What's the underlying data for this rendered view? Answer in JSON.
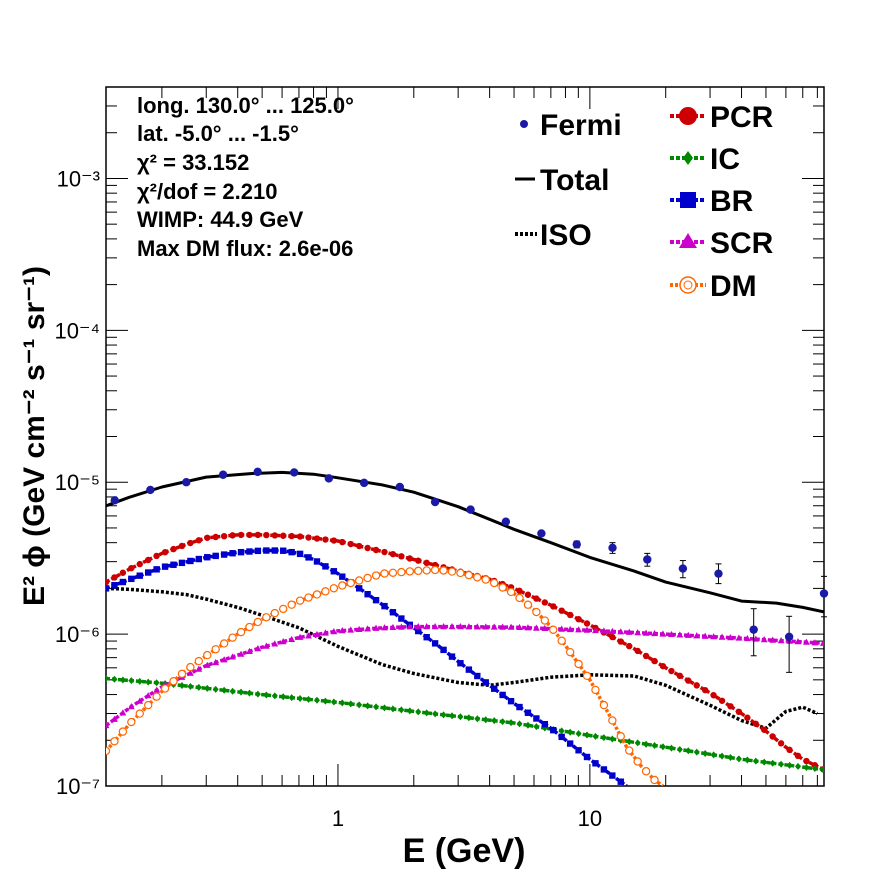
{
  "chart_data": {
    "type": "scatter",
    "xlabel": "E (GeV)",
    "ylabel": "E² ϕ (GeV cm⁻² s⁻¹ sr⁻¹)",
    "xscale": "log",
    "yscale": "log",
    "xlim": [
      0.12,
      85
    ],
    "ylim": [
      1e-07,
      0.004
    ],
    "x_tick_labels": [
      "1",
      "10"
    ],
    "y_tick_labels": [
      "10⁻³",
      "10⁻⁴",
      "10⁻⁵",
      "10⁻⁶",
      "10⁻⁷"
    ],
    "grid": false,
    "annotations": [
      "long. 130.0° ... 125.0°",
      "lat. -5.0° ... -1.5°",
      "χ² = 33.152",
      "χ²/dof = 2.210",
      "WIMP: 44.9 GeV",
      "Max DM flux: 2.6e-06"
    ],
    "legend_left": [
      {
        "name": "Fermi",
        "style": "points",
        "color": "#1a1aa6"
      },
      {
        "name": "Total",
        "style": "solid",
        "color": "#000000"
      },
      {
        "name": "ISO",
        "style": "dotted",
        "color": "#000000"
      }
    ],
    "legend_right": [
      {
        "name": "PCR",
        "style": "circles",
        "color": "#cc0000"
      },
      {
        "name": "IC",
        "style": "diamonds",
        "color": "#008800"
      },
      {
        "name": "BR",
        "style": "squares",
        "color": "#0000cc"
      },
      {
        "name": "SCR",
        "style": "triangles",
        "color": "#cc00cc"
      },
      {
        "name": "DM",
        "style": "open-circles",
        "color": "#ff6600"
      }
    ],
    "fermi": {
      "x": [
        0.13,
        0.18,
        0.25,
        0.35,
        0.48,
        0.67,
        0.92,
        1.27,
        1.76,
        2.43,
        3.36,
        4.64,
        6.42,
        8.87,
        12.3,
        16.9,
        23.4,
        32.4,
        44.7,
        61.8,
        85.0
      ],
      "y": [
        7.6e-06,
        8.9e-06,
        1e-05,
        1.12e-05,
        1.17e-05,
        1.16e-05,
        1.06e-05,
        9.9e-06,
        9.3e-06,
        7.4e-06,
        6.6e-06,
        5.5e-06,
        4.6e-06,
        3.9e-06,
        3.7e-06,
        3.1e-06,
        2.7e-06,
        2.5e-06,
        1.07e-06,
        9.6e-07,
        1.85e-06
      ],
      "err_lo": [
        0,
        0,
        0,
        0,
        0,
        0,
        0,
        0,
        0,
        0,
        0,
        0,
        0,
        2e-07,
        3e-07,
        3e-07,
        3.5e-07,
        3.5e-07,
        3.5e-07,
        4e-07,
        5.5e-07
      ],
      "err_hi": [
        0,
        0,
        0,
        0,
        0,
        0,
        0,
        0,
        0,
        0,
        0,
        0,
        0,
        2e-07,
        3e-07,
        3e-07,
        3.5e-07,
        4e-07,
        4e-07,
        3.5e-07,
        5.5e-07
      ]
    },
    "series": [
      {
        "name": "Total",
        "color": "#000000",
        "x": [
          0.12,
          0.15,
          0.2,
          0.3,
          0.45,
          0.6,
          0.8,
          1.0,
          1.5,
          2.0,
          3.0,
          4.0,
          5.0,
          7.0,
          10,
          15,
          20,
          30,
          40,
          55,
          70,
          85
        ],
        "y": [
          7e-06,
          8e-06,
          9.3e-06,
          1.08e-05,
          1.14e-05,
          1.16e-05,
          1.13e-05,
          1.07e-05,
          9.6e-06,
          8.6e-06,
          6.9e-06,
          5.7e-06,
          4.9e-06,
          4e-06,
          3.2e-06,
          2.6e-06,
          2.2e-06,
          1.87e-06,
          1.65e-06,
          1.6e-06,
          1.5e-06,
          1.4e-06
        ]
      },
      {
        "name": "ISO",
        "color": "#000000",
        "x": [
          0.12,
          0.15,
          0.2,
          0.25,
          0.3,
          0.4,
          0.5,
          0.7,
          1.0,
          1.5,
          2.0,
          3.0,
          4.0,
          5.0,
          7.0,
          10,
          15,
          20,
          30,
          40,
          50,
          60,
          70,
          80
        ],
        "y": [
          2e-06,
          1.97e-06,
          1.9e-06,
          1.82e-06,
          1.7e-06,
          1.5e-06,
          1.33e-06,
          1.1e-06,
          8.3e-07,
          6.3e-07,
          5.5e-07,
          4.8e-07,
          4.6e-07,
          4.8e-07,
          5.2e-07,
          5.4e-07,
          5.3e-07,
          4.6e-07,
          3.4e-07,
          2.7e-07,
          2.4e-07,
          3.1e-07,
          3.3e-07,
          3e-07
        ]
      },
      {
        "name": "PCR",
        "color": "#cc0000",
        "x": [
          0.12,
          0.15,
          0.2,
          0.25,
          0.3,
          0.4,
          0.5,
          0.7,
          1.0,
          1.5,
          2.0,
          3.0,
          4.0,
          5.0,
          7.0,
          10,
          15,
          20,
          30,
          40,
          50,
          60,
          70,
          85
        ],
        "y": [
          2.2e-06,
          2.7e-06,
          3.4e-06,
          3.9e-06,
          4.3e-06,
          4.5e-06,
          4.5e-06,
          4.4e-06,
          4.1e-06,
          3.5e-06,
          3.1e-06,
          2.6e-06,
          2.3e-06,
          2e-06,
          1.55e-06,
          1.15e-06,
          8e-07,
          6e-07,
          4.1e-07,
          3e-07,
          2.3e-07,
          1.8e-07,
          1.5e-07,
          1.28e-07
        ]
      },
      {
        "name": "IC",
        "color": "#008800",
        "x": [
          0.12,
          0.2,
          0.3,
          0.5,
          1.0,
          2.0,
          5.0,
          10,
          20,
          40,
          85
        ],
        "y": [
          5.1e-07,
          4.75e-07,
          4.4e-07,
          4e-07,
          3.55e-07,
          3.1e-07,
          2.6e-07,
          2.15e-07,
          1.8e-07,
          1.5e-07,
          1.28e-07
        ]
      },
      {
        "name": "BR",
        "color": "#0000cc",
        "x": [
          0.12,
          0.15,
          0.2,
          0.3,
          0.4,
          0.5,
          0.6,
          0.7,
          0.8,
          1.0,
          1.3,
          1.6,
          2.0,
          2.5,
          3.0,
          4.0,
          5.0,
          7.0,
          10,
          14
        ],
        "y": [
          2e-06,
          2.3e-06,
          2.75e-06,
          3.2e-06,
          3.45e-06,
          3.55e-06,
          3.55e-06,
          3.4e-06,
          3.1e-06,
          2.5e-06,
          1.85e-06,
          1.45e-06,
          1.1e-06,
          8.4e-07,
          6.6e-07,
          4.6e-07,
          3.5e-07,
          2.4e-07,
          1.5e-07,
          1e-07
        ]
      },
      {
        "name": "SCR",
        "color": "#cc00cc",
        "x": [
          0.12,
          0.15,
          0.2,
          0.3,
          0.5,
          0.7,
          1.0,
          1.5,
          2.0,
          3.0,
          5.0,
          10,
          20,
          40,
          85
        ],
        "y": [
          2.5e-07,
          3.3e-07,
          4.5e-07,
          6.2e-07,
          8.2e-07,
          9.5e-07,
          1.05e-06,
          1.1e-06,
          1.12e-06,
          1.12e-06,
          1.11e-06,
          1.06e-06,
          1e-06,
          9.4e-07,
          8.7e-07
        ]
      },
      {
        "name": "DM",
        "color": "#ff6600",
        "x": [
          0.12,
          0.15,
          0.2,
          0.25,
          0.3,
          0.4,
          0.5,
          0.7,
          1.0,
          1.5,
          2.0,
          2.5,
          3.0,
          4.0,
          5.0,
          6.0,
          7.0,
          8.0,
          10,
          12,
          14,
          16,
          18,
          19.5
        ],
        "y": [
          1.7e-07,
          2.6e-07,
          4.2e-07,
          5.8e-07,
          7.2e-07,
          1e-06,
          1.25e-06,
          1.65e-06,
          2.05e-06,
          2.5e-06,
          2.6e-06,
          2.65e-06,
          2.55e-06,
          2.25e-06,
          1.85e-06,
          1.45e-06,
          1.12e-06,
          8.4e-07,
          5e-07,
          2.9e-07,
          1.8e-07,
          1.35e-07,
          1.1e-07,
          1e-07
        ]
      }
    ]
  }
}
